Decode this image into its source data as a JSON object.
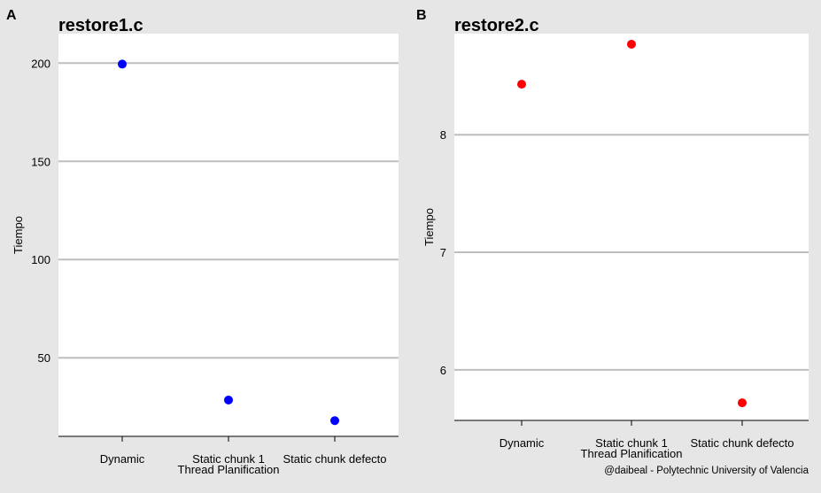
{
  "figure": {
    "caption": "@daibeal - Polytechnic University of Valencia"
  },
  "chart_data": [
    {
      "type": "scatter",
      "panel_label": "A",
      "title": "restore1.c",
      "xlabel": "Thread Planification",
      "ylabel": "Tiempo",
      "categories": [
        "Dynamic",
        "Static chunk 1",
        "Static chunk defecto"
      ],
      "values": [
        199.5,
        28.5,
        18.0
      ],
      "yticks": [
        50,
        100,
        150,
        200
      ],
      "ylim": [
        10,
        215
      ],
      "point_color": "#0000ff",
      "grid": true
    },
    {
      "type": "scatter",
      "panel_label": "B",
      "title": "restore2.c",
      "xlabel": "Thread Planification",
      "ylabel": "Tiempo",
      "categories": [
        "Dynamic",
        "Static chunk 1",
        "Static chunk defecto"
      ],
      "values": [
        8.43,
        8.77,
        5.72
      ],
      "yticks": [
        6,
        7,
        8
      ],
      "ylim": [
        5.57,
        8.86
      ],
      "point_color": "#ff0000",
      "grid": true
    }
  ]
}
